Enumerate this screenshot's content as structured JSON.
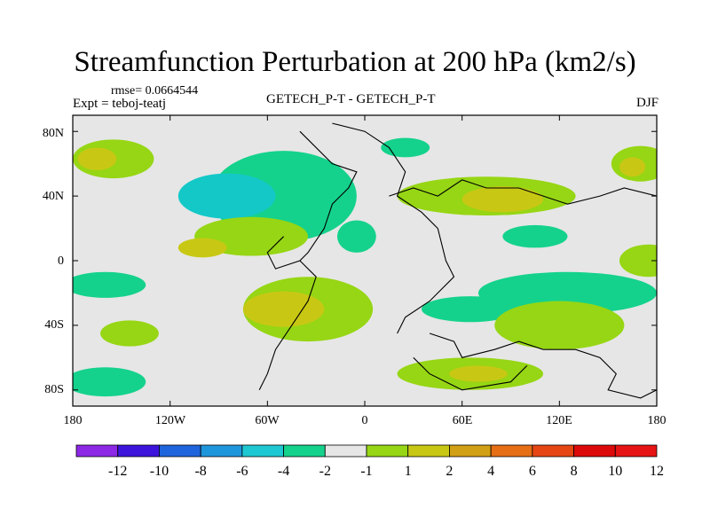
{
  "title": "Streamfunction Perturbation at 200 hPa (km2/s)",
  "rmse_text": "rmse= 0.0664544",
  "expt_text": "Expt = teboj-teatj",
  "center_label": "GETECH_P-T - GETECH_P-T",
  "season_label": "DJF",
  "lat_ticks": [
    "80N",
    "40N",
    "0",
    "40S",
    "80S"
  ],
  "lon_ticks": [
    "180",
    "120W",
    "60W",
    "0",
    "60E",
    "120E",
    "180"
  ],
  "colors": {
    "background_field": "#e6e6e6",
    "neg_weak": "#14d28c",
    "neg_mid": "#14c8c8",
    "pos_weak": "#96d614",
    "pos_mid": "#c8c814",
    "coast": "#000000"
  },
  "colorbar": {
    "colors": [
      "#8c28e6",
      "#3c14dc",
      "#1e64dc",
      "#1e96dc",
      "#1ec8d2",
      "#14d28c",
      "#e6e6e6",
      "#96d614",
      "#c8c814",
      "#d2a014",
      "#e66e14",
      "#e64614",
      "#dc0a0a",
      "#e61414"
    ],
    "labels": [
      "-12",
      "-10",
      "-8",
      "-6",
      "-4",
      "-2",
      "-1",
      "1",
      "2",
      "4",
      "6",
      "8",
      "10",
      "12"
    ]
  },
  "contours": [
    {
      "level": "pos_weak",
      "lon": -155,
      "lat": 63,
      "rlon": 25,
      "rlat": 12
    },
    {
      "level": "pos_mid",
      "lon": -165,
      "lat": 63,
      "rlon": 12,
      "rlat": 7
    },
    {
      "level": "neg_weak",
      "lon": -50,
      "lat": 40,
      "rlon": 45,
      "rlat": 28
    },
    {
      "level": "neg_mid",
      "lon": -85,
      "lat": 40,
      "rlon": 30,
      "rlat": 14
    },
    {
      "level": "pos_weak",
      "lon": -70,
      "lat": 15,
      "rlon": 35,
      "rlat": 12
    },
    {
      "level": "pos_mid",
      "lon": -100,
      "lat": 8,
      "rlon": 15,
      "rlat": 6
    },
    {
      "level": "neg_weak",
      "lon": -160,
      "lat": -15,
      "rlon": 25,
      "rlat": 8
    },
    {
      "level": "pos_weak",
      "lon": -35,
      "lat": -30,
      "rlon": 40,
      "rlat": 20
    },
    {
      "level": "pos_mid",
      "lon": -50,
      "lat": -30,
      "rlon": 25,
      "rlat": 11
    },
    {
      "level": "pos_weak",
      "lon": -145,
      "lat": -45,
      "rlon": 18,
      "rlat": 8
    },
    {
      "level": "neg_weak",
      "lon": -160,
      "lat": -75,
      "rlon": 25,
      "rlat": 9
    },
    {
      "level": "neg_weak",
      "lon": 25,
      "lat": 70,
      "rlon": 15,
      "rlat": 6
    },
    {
      "level": "pos_weak",
      "lon": 75,
      "lat": 40,
      "rlon": 55,
      "rlat": 12
    },
    {
      "level": "pos_mid",
      "lon": 85,
      "lat": 38,
      "rlon": 25,
      "rlat": 8
    },
    {
      "level": "neg_weak",
      "lon": -5,
      "lat": 15,
      "rlon": 12,
      "rlat": 10
    },
    {
      "level": "neg_weak",
      "lon": 105,
      "lat": 15,
      "rlon": 20,
      "rlat": 7
    },
    {
      "level": "pos_weak",
      "lon": 170,
      "lat": 60,
      "rlon": 18,
      "rlat": 11
    },
    {
      "level": "pos_mid",
      "lon": 165,
      "lat": 58,
      "rlon": 8,
      "rlat": 6
    },
    {
      "level": "neg_weak",
      "lon": 125,
      "lat": -20,
      "rlon": 55,
      "rlat": 13
    },
    {
      "level": "neg_weak",
      "lon": 65,
      "lat": -30,
      "rlon": 30,
      "rlat": 8
    },
    {
      "level": "pos_weak",
      "lon": 65,
      "lat": -70,
      "rlon": 45,
      "rlat": 10
    },
    {
      "level": "pos_mid",
      "lon": 70,
      "lat": -70,
      "rlon": 18,
      "rlat": 5
    },
    {
      "level": "pos_weak",
      "lon": 120,
      "lat": -40,
      "rlon": 40,
      "rlat": 15
    },
    {
      "level": "pos_weak",
      "lon": 175,
      "lat": 0,
      "rlon": 18,
      "rlat": 10
    }
  ],
  "coastlines": [
    {
      "name": "north-america",
      "points": [
        [
          -40,
          80
        ],
        [
          -20,
          60
        ],
        [
          -5,
          55
        ],
        [
          -10,
          45
        ],
        [
          -20,
          35
        ],
        [
          -25,
          20
        ],
        [
          -35,
          5
        ],
        [
          -40,
          0
        ],
        [
          -55,
          -5
        ],
        [
          -60,
          5
        ],
        [
          -50,
          15
        ]
      ]
    },
    {
      "name": "south-america",
      "points": [
        [
          -40,
          0
        ],
        [
          -30,
          -10
        ],
        [
          -35,
          -25
        ],
        [
          -45,
          -40
        ],
        [
          -55,
          -55
        ],
        [
          -60,
          -70
        ],
        [
          -65,
          -80
        ]
      ]
    },
    {
      "name": "africa",
      "points": [
        [
          -20,
          85
        ],
        [
          0,
          80
        ],
        [
          15,
          70
        ],
        [
          25,
          55
        ],
        [
          20,
          40
        ],
        [
          35,
          30
        ],
        [
          45,
          20
        ],
        [
          50,
          0
        ],
        [
          55,
          -10
        ],
        [
          40,
          -25
        ],
        [
          25,
          -35
        ],
        [
          20,
          -45
        ]
      ]
    },
    {
      "name": "europe-asia",
      "points": [
        [
          15,
          40
        ],
        [
          30,
          45
        ],
        [
          45,
          40
        ],
        [
          60,
          50
        ],
        [
          75,
          45
        ],
        [
          95,
          45
        ],
        [
          110,
          40
        ],
        [
          125,
          35
        ],
        [
          145,
          40
        ],
        [
          160,
          45
        ],
        [
          180,
          40
        ]
      ]
    },
    {
      "name": "australia",
      "points": [
        [
          40,
          -45
        ],
        [
          55,
          -50
        ],
        [
          60,
          -60
        ],
        [
          80,
          -55
        ],
        [
          95,
          -50
        ],
        [
          110,
          -55
        ],
        [
          130,
          -55
        ],
        [
          145,
          -60
        ],
        [
          155,
          -70
        ],
        [
          150,
          -80
        ],
        [
          170,
          -85
        ],
        [
          180,
          -80
        ]
      ]
    },
    {
      "name": "antarctic-coast",
      "points": [
        [
          30,
          -60
        ],
        [
          40,
          -70
        ],
        [
          60,
          -80
        ],
        [
          90,
          -75
        ],
        [
          100,
          -65
        ]
      ]
    }
  ]
}
